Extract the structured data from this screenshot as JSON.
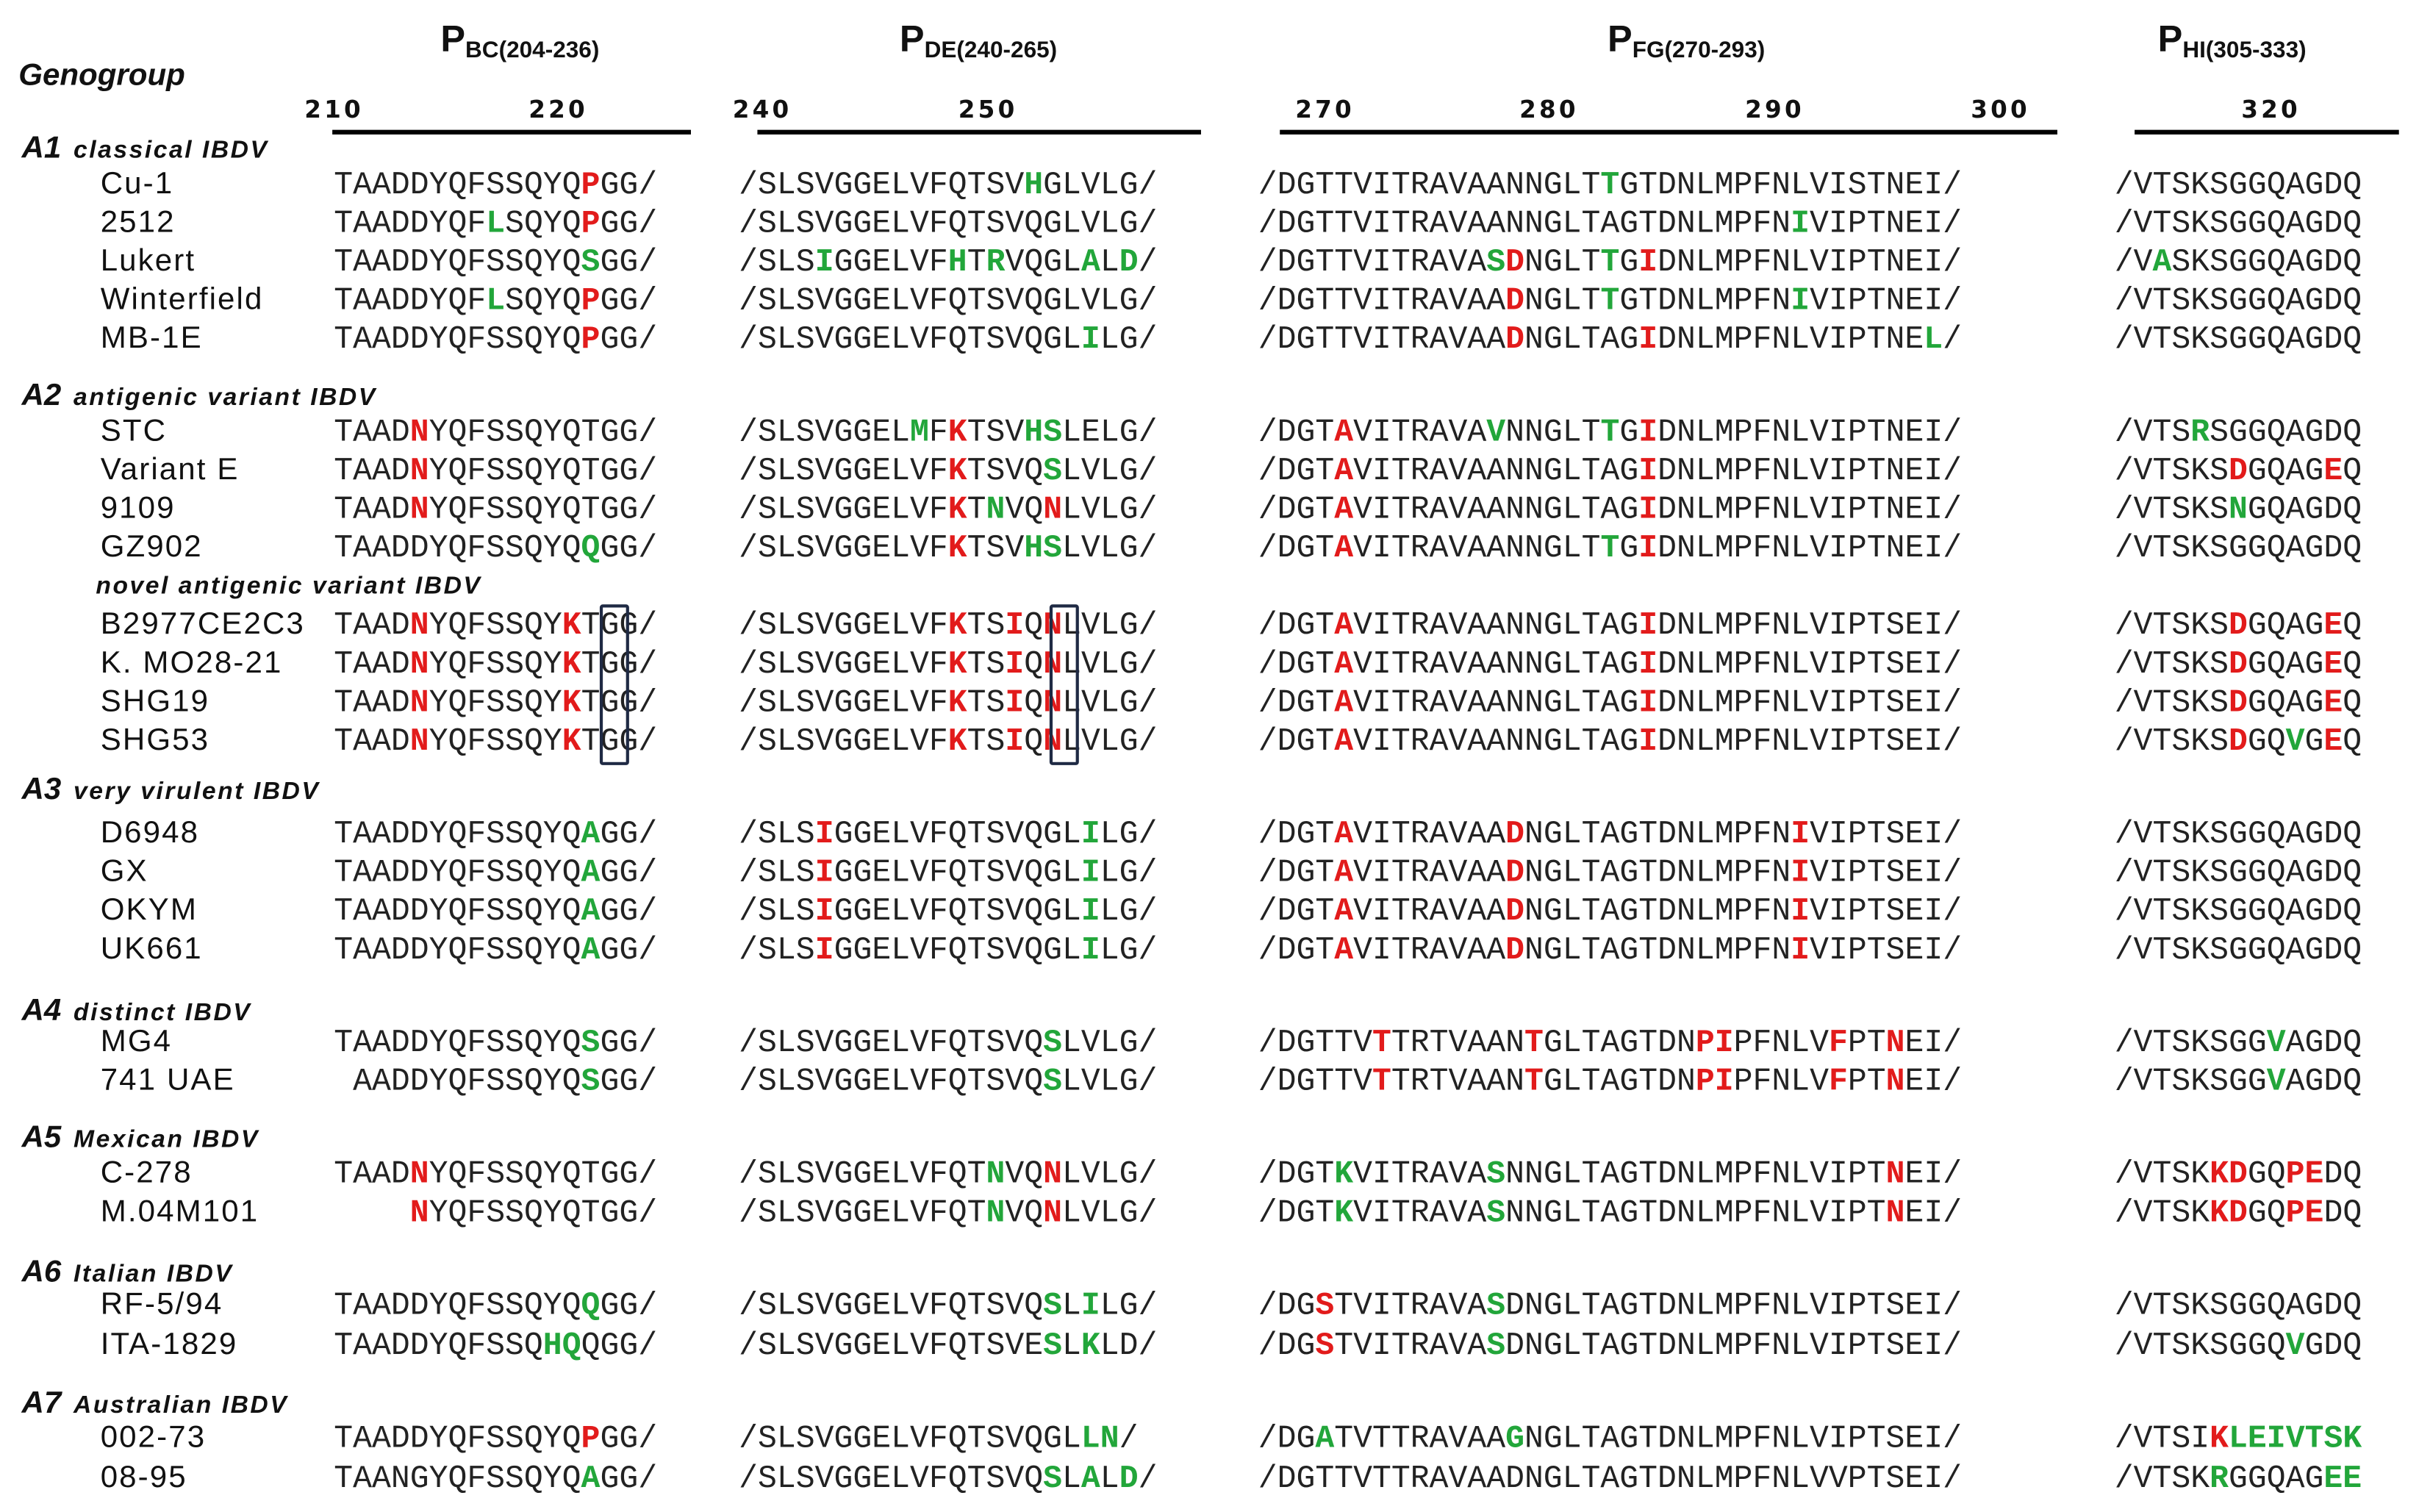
{
  "header": {
    "genogroup_label": "Genogroup",
    "regions": [
      {
        "main": "P",
        "sub": "BC(204-236)"
      },
      {
        "main": "P",
        "sub": "DE(240-265)"
      },
      {
        "main": "P",
        "sub": "FG(270-293)"
      },
      {
        "main": "P",
        "sub": "HI(305-333)"
      }
    ],
    "ticks": [
      "210",
      "220",
      "240",
      "250",
      "270",
      "280",
      "290",
      "300",
      "320"
    ]
  },
  "groups": [
    {
      "code": "A1",
      "name": "classical IBDV"
    },
    {
      "code": "A2",
      "name": "antigenic variant IBDV"
    },
    {
      "code": "A3",
      "name": "very virulent IBDV"
    },
    {
      "code": "A4",
      "name": "distinct IBDV"
    },
    {
      "code": "A5",
      "name": "Mexican IBDV"
    },
    {
      "code": "A6",
      "name": "Italian IBDV"
    },
    {
      "code": "A7",
      "name": "Australian IBDV"
    }
  ],
  "subgroup_label": "novel antigenic variant IBDV",
  "rows": [
    {
      "name": "Cu-1",
      "seqs": [
        "TAADDYQFSSQYQ[r:P]GG/",
        "/SLSVGGELVFQTSV[g:H]GLVLG/",
        "/DGTTVITRAVAANNGLT[g:T]GTDNLMPFNLVISTNEI/",
        "/VTSKSGGQAGDQ"
      ]
    },
    {
      "name": "2512",
      "seqs": [
        "TAADDYQF[g:L]SQYQ[r:P]GG/",
        "/SLSVGGELVFQTSVQGLVLG/",
        "/DGTTVITRAVAANNGLTAGTDNLMPFN[g:I]VIPTNEI/",
        "/VTSKSGGQAGDQ"
      ]
    },
    {
      "name": "Lukert",
      "seqs": [
        "TAADDYQFSSQYQ[g:S]GG/",
        "/SLS[g:I]GGELVF[g:H]T[g:R]VQGL[g:A]L[g:D]/",
        "/DGTTVITRAVA[g:S][r:D]NGLT[g:T]G[r:I]DNLMPFNLVIPTNEI/",
        "/V[g:A]SKSGGQAGDQ"
      ]
    },
    {
      "name": "Winterfield",
      "seqs": [
        "TAADDYQF[g:L]SQYQ[r:P]GG/",
        "/SLSVGGELVFQTSVQGLVLG/",
        "/DGTTVITRAVAA[r:D]NGLT[g:T]GTDNLMPFN[g:I]VIPTNEI/",
        "/VTSKSGGQAGDQ"
      ]
    },
    {
      "name": "MB-1E",
      "seqs": [
        "TAADDYQFSSQYQ[r:P]GG/",
        "/SLSVGGELVFQTSVQGL[g:I]LG/",
        "/DGTTVITRAVAA[r:D]NGLTAG[r:I]DNLMPFNLVIPTNE[g:L]/",
        "/VTSKSGGQAGDQ"
      ]
    },
    {
      "name": "STC",
      "seqs": [
        "TAAD[r:N]YQFSSQYQTGG/",
        "/SLSVGGEL[g:M]F[r:K]TSV[g:H][g:S]LELG/",
        "/DGT[r:A]VITRAVA[g:V]NNGLT[g:T]G[r:I]DNLMPFNLVIPTNEI/",
        "/VTS[g:R]SGGQAGDQ"
      ]
    },
    {
      "name": "Variant E",
      "seqs": [
        "TAAD[r:N]YQFSSQYQTGG/",
        "/SLSVGGELVF[r:K]TSVQ[g:S]LVLG/",
        "/DGT[r:A]VITRAVAANNGLTAG[r:I]DNLMPFNLVIPTNEI/",
        "/VTSKS[r:D]GQAG[r:E]Q"
      ]
    },
    {
      "name": "9109",
      "seqs": [
        "TAAD[r:N]YQFSSQYQTGG/",
        "/SLSVGGELVF[r:K]T[g:N]VQ[r:N]LVLG/",
        "/DGT[r:A]VITRAVAANNGLTAG[r:I]DNLMPFNLVIPTNEI/",
        "/VTSKS[g:N]GQAGDQ"
      ]
    },
    {
      "name": "GZ902",
      "seqs": [
        "TAADDYQFSSQYQ[g:Q]GG/",
        "/SLSVGGELVF[r:K]TSV[g:H][g:S]LVLG/",
        "/DGT[r:A]VITRAVAANNGLT[g:T]G[r:I]DNLMPFNLVIPTNEI/",
        "/VTSKSGGQAGDQ"
      ]
    },
    {
      "name": "B2977CE2C3",
      "seqs": [
        "TAAD[r:N]YQFSSQY[r:K]TGG/",
        "/SLSVGGELVF[r:K]TS[r:I]Q[r:N]LVLG/",
        "/DGT[r:A]VITRAVAANNGLTAG[r:I]DNLMPFNLVIPTSEI/",
        "/VTSKS[r:D]GQAG[r:E]Q"
      ]
    },
    {
      "name": "K. MO28-21",
      "seqs": [
        "TAAD[r:N]YQFSSQY[r:K]TGG/",
        "/SLSVGGELVF[r:K]TS[r:I]Q[r:N]LVLG/",
        "/DGT[r:A]VITRAVAANNGLTAG[r:I]DNLMPFNLVIPTSEI/",
        "/VTSKS[r:D]GQAG[r:E]Q"
      ]
    },
    {
      "name": "SHG19",
      "seqs": [
        "TAAD[r:N]YQFSSQY[r:K]TGG/",
        "/SLSVGGELVF[r:K]TS[r:I]Q[r:N]LVLG/",
        "/DGT[r:A]VITRAVAANNGLTAG[r:I]DNLMPFNLVIPTSEI/",
        "/VTSKS[r:D]GQAG[r:E]Q"
      ]
    },
    {
      "name": "SHG53",
      "seqs": [
        "TAAD[r:N]YQFSSQY[r:K]TGG/",
        "/SLSVGGELVF[r:K]TS[r:I]Q[r:N]LVLG/",
        "/DGT[r:A]VITRAVAANNGLTAG[r:I]DNLMPFNLVIPTSEI/",
        "/VTSKS[r:D]GQ[g:V]G[r:E]Q"
      ]
    },
    {
      "name": "D6948",
      "seqs": [
        "TAADDYQFSSQYQ[g:A]GG/",
        "/SLS[r:I]GGELVFQTSVQGL[g:I]LG/",
        "/DGT[r:A]VITRAVAA[r:D]NGLTAGTDNLMPFN[r:I]VIPTSEI/",
        "/VTSKSGGQAGDQ"
      ]
    },
    {
      "name": "GX",
      "seqs": [
        "TAADDYQFSSQYQ[g:A]GG/",
        "/SLS[r:I]GGELVFQTSVQGL[g:I]LG/",
        "/DGT[r:A]VITRAVAA[r:D]NGLTAGTDNLMPFN[r:I]VIPTSEI/",
        "/VTSKSGGQAGDQ"
      ]
    },
    {
      "name": "OKYM",
      "seqs": [
        "TAADDYQFSSQYQ[g:A]GG/",
        "/SLS[r:I]GGELVFQTSVQGL[g:I]LG/",
        "/DGT[r:A]VITRAVAA[r:D]NGLTAGTDNLMPFN[r:I]VIPTSEI/",
        "/VTSKSGGQAGDQ"
      ]
    },
    {
      "name": "UK661",
      "seqs": [
        "TAADDYQFSSQYQ[g:A]GG/",
        "/SLS[r:I]GGELVFQTSVQGL[g:I]LG/",
        "/DGT[r:A]VITRAVAA[r:D]NGLTAGTDNLMPFN[r:I]VIPTSEI/",
        "/VTSKSGGQAGDQ"
      ]
    },
    {
      "name": "MG4",
      "seqs": [
        "TAADDYQFSSQYQ[g:S]GG/",
        "/SLSVGGELVFQTSVQ[g:S]LVLG/",
        "/DGTTV[r:T]TRTVAAN[r:T]GLTAGTDN[r:P][r:I]PFNLV[r:F]PT[r:N]EI/",
        "/VTSKSGG[g:V]AGDQ"
      ]
    },
    {
      "name": "741 UAE",
      "seqs": [
        " AADDYQFSSQYQ[g:S]GG/",
        "/SLSVGGELVFQTSVQ[g:S]LVLG/",
        "/DGTTV[r:T]TRTVAAN[r:T]GLTAGTDN[r:P][r:I]PFNLV[r:F]PT[r:N]EI/",
        "/VTSKSGG[g:V]AGDQ"
      ]
    },
    {
      "name": "C-278",
      "seqs": [
        "TAAD[r:N]YQFSSQYQTGG/",
        "/SLSVGGELVFQT[g:N]VQ[r:N]LVLG/",
        "/DGT[g:K]VITRAVA[g:S]NNGLTAGTDNLMPFNLVIPT[r:N]EI/",
        "/VTSK[r:K][r:D]GQ[r:P][r:E]DQ"
      ]
    },
    {
      "name": "M.04M101",
      "seqs": [
        "    [r:N]YQFSSQYQTGG/",
        "/SLSVGGELVFQT[g:N]VQ[r:N]LVLG/",
        "/DGT[g:K]VITRAVA[g:S]NNGLTAGTDNLMPFNLVIPT[r:N]EI/",
        "/VTSK[r:K][r:D]GQ[r:P][r:E]DQ"
      ]
    },
    {
      "name": "RF-5/94",
      "seqs": [
        "TAADDYQFSSQYQ[g:Q]GG/",
        "/SLSVGGELVFQTSVQ[g:S]L[g:I]LG/",
        "/DG[r:S]TVITRAVA[g:S]DNGLTAGTDNLMPFNLVIPTSEI/",
        "/VTSKSGGQAGDQ"
      ]
    },
    {
      "name": "ITA-1829",
      "seqs": [
        "TAADDYQFSSQ[g:H][g:Q]QGG/",
        "/SLSVGGELVFQTSVE[g:S]L[g:K]LD/",
        "/DG[r:S]TVITRAVA[g:S]DNGLTAGTDNLMPFNLVIPTSEI/",
        "/VTSKSGGQ[g:V]GDQ"
      ]
    },
    {
      "name": "002-73",
      "seqs": [
        "TAADDYQFSSQYQ[r:P]GG/",
        "/SLSVGGELVFQTSVQGL[g:L][g:N]/",
        "/DG[g:A]TVTTRAVAA[g:G]NGLTAGTDNLMPFNLVIPTSEI/",
        "/VTSI[r:K][g:L][g:E][g:I][g:V][g:T][g:S][g:K]"
      ]
    },
    {
      "name": "08-95",
      "seqs": [
        "TAANGYQFSSQYQ[g:A]GG/",
        "/SLSVGGELVFQTSVQ[g:S]L[g:A]L[g:D]/",
        "/DGTTVTTRAVAADNGLTAGTDNLMPFNLVVPTSEI/",
        "/VTSK[g:R]GGQAG[g:E][g:E]"
      ]
    }
  ]
}
